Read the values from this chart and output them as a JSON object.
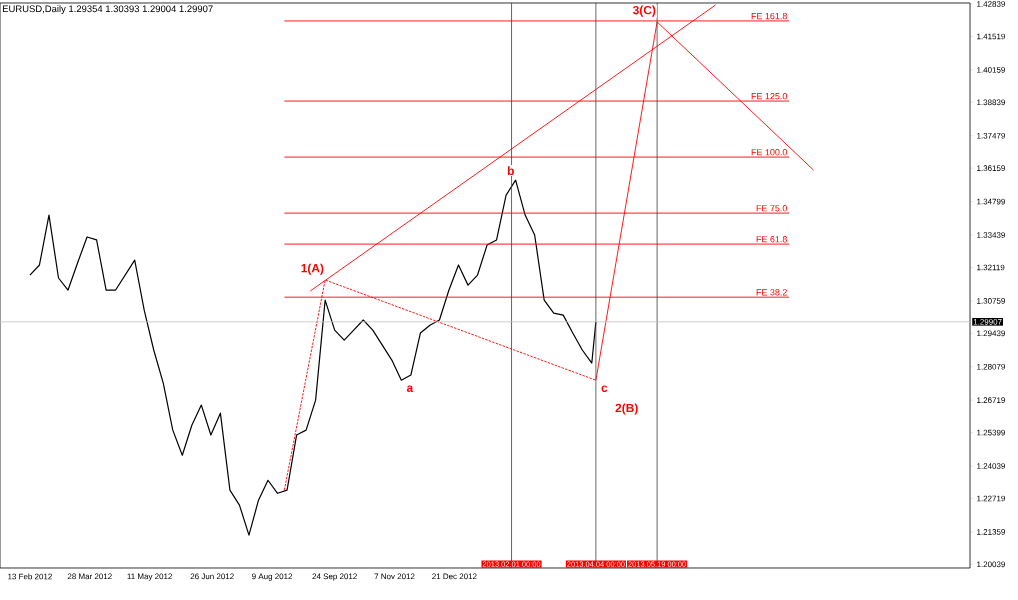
{
  "chart_data": {
    "type": "line",
    "title": "EURUSD,Daily  1.29354 1.30393 1.29004 1.29907",
    "x": [
      "2012-02-13",
      "2012-02-20",
      "2012-02-27",
      "2012-03-05",
      "2012-03-12",
      "2012-03-19",
      "2012-03-26",
      "2012-04-02",
      "2012-04-09",
      "2012-04-16",
      "2012-04-23",
      "2012-04-30",
      "2012-05-07",
      "2012-05-14",
      "2012-05-21",
      "2012-05-28",
      "2012-06-04",
      "2012-06-11",
      "2012-06-18",
      "2012-06-25",
      "2012-07-02",
      "2012-07-09",
      "2012-07-16",
      "2012-07-23",
      "2012-07-30",
      "2012-08-06",
      "2012-08-13",
      "2012-08-20",
      "2012-08-27",
      "2012-09-03",
      "2012-09-10",
      "2012-09-17",
      "2012-09-24",
      "2012-10-01",
      "2012-10-08",
      "2012-10-15",
      "2012-10-22",
      "2012-10-29",
      "2012-11-05",
      "2012-11-12",
      "2012-11-19",
      "2012-11-26",
      "2012-12-03",
      "2012-12-10",
      "2012-12-17",
      "2012-12-24",
      "2012-12-31",
      "2013-01-07",
      "2013-01-14",
      "2013-01-21",
      "2013-01-28",
      "2013-02-04",
      "2013-02-11",
      "2013-02-18",
      "2013-02-25",
      "2013-03-04",
      "2013-03-11",
      "2013-03-18",
      "2013-03-25",
      "2013-04-01",
      "2013-04-04"
    ],
    "series": [
      {
        "color": "#000000",
        "values": [
          1.3181,
          1.3222,
          1.3425,
          1.3169,
          1.312,
          1.323,
          1.3336,
          1.3324,
          1.312,
          1.312,
          1.3181,
          1.3242,
          1.3038,
          1.2876,
          1.2741,
          1.255,
          1.2448,
          1.257,
          1.2652,
          1.253,
          1.2619,
          1.2306,
          1.2245,
          1.2123,
          1.2265,
          1.2346,
          1.2293,
          1.2306,
          1.253,
          1.255,
          1.2672,
          1.3079,
          1.2957,
          1.2916,
          1.2957,
          1.2998,
          1.2957,
          1.2896,
          1.2835,
          1.2753,
          1.2774,
          1.2945,
          1.2977,
          1.2998,
          1.312,
          1.3222,
          1.314,
          1.3181,
          1.3303,
          1.3324,
          1.3506,
          1.3567,
          1.3425,
          1.3344,
          1.3079,
          1.3026,
          1.3018,
          1.2945,
          1.2876,
          1.2823,
          1.2991
        ]
      },
      {
        "color": "#ff0000",
        "line_style": "dashed",
        "x": [
          "2012-08-18",
          "2012-09-17",
          "2013-04-04"
        ],
        "values": [
          1.2306,
          1.3161,
          1.2753
        ]
      },
      {
        "color": "#ff0000",
        "x": [
          "2013-04-04",
          "2013-05-19",
          "2013-09-11"
        ],
        "values": [
          1.2753,
          1.4211,
          1.3608
        ]
      },
      {
        "color": "#ff0000",
        "x": [
          "2012-09-06",
          "2013-07-01"
        ],
        "values": [
          1.3116,
          1.428
        ]
      },
      {
        "name": "FE 161.8",
        "color": "#ff0000",
        "x": [
          "2012-08-18",
          "2013-08-24"
        ],
        "values": [
          1.4215,
          1.4215
        ]
      },
      {
        "name": "FE 125.0",
        "color": "#ff0000",
        "x": [
          "2012-08-18",
          "2013-08-24"
        ],
        "values": [
          1.3889,
          1.3889
        ]
      },
      {
        "name": "FE 100.0",
        "color": "#ff0000",
        "x": [
          "2012-08-18",
          "2013-08-24"
        ],
        "values": [
          1.3661,
          1.3661
        ]
      },
      {
        "name": "FE 75.0",
        "color": "#ff0000",
        "x": [
          "2012-08-18",
          "2013-08-24"
        ],
        "values": [
          1.3433,
          1.3433
        ]
      },
      {
        "name": "FE 61.8",
        "color": "#ff0000",
        "x": [
          "2012-08-18",
          "2013-08-24"
        ],
        "values": [
          1.3307,
          1.3307
        ]
      },
      {
        "name": "FE 38.2",
        "color": "#ff0000",
        "x": [
          "2012-08-18",
          "2013-08-24"
        ],
        "values": [
          1.3091,
          1.3091
        ]
      }
    ],
    "xlim": [
      "2012-01-22",
      "2014-01-04"
    ],
    "xticks": [
      {
        "value": "2012-02-13",
        "label": "13 Feb 2012"
      },
      {
        "value": "2012-03-28",
        "label": "28 Mar 2012"
      },
      {
        "value": "2012-05-11",
        "label": "11 May 2012"
      },
      {
        "value": "2012-06-26",
        "label": "26 Jun 2012"
      },
      {
        "value": "2012-08-09",
        "label": "9 Aug 2012"
      },
      {
        "value": "2012-09-24",
        "label": "24 Sep 2012"
      },
      {
        "value": "2012-11-07",
        "label": "7 Nov 2012"
      },
      {
        "value": "2012-12-21",
        "label": "21 Dec 2012"
      }
    ],
    "ylim": [
      1.1989,
      1.4288
    ],
    "yticks": [
      1.20039,
      1.21359,
      1.22719,
      1.24039,
      1.25399,
      1.26719,
      1.28079,
      1.29439,
      1.30759,
      1.32119,
      1.33439,
      1.34799,
      1.36159,
      1.37479,
      1.38839,
      1.40159,
      1.41519,
      1.42839
    ],
    "ref_lines": [
      {
        "axis": "x",
        "value": "2013-02-01",
        "label": "2013.02.01 00:00",
        "color": "#404040"
      },
      {
        "axis": "x",
        "value": "2013-04-04",
        "label": "2013.04.04 00:00",
        "color": "#404040"
      },
      {
        "axis": "x",
        "value": "2013-05-19",
        "label": "2013.05.19 00:00",
        "color": "#404040"
      },
      {
        "axis": "y",
        "value": 1.29907,
        "label": "1.29907",
        "color": "#c0c0c0"
      }
    ],
    "annotations": [
      {
        "text": "1(A)",
        "x": "2012-09-17",
        "y": 1.3161
      },
      {
        "text": "a",
        "x": "2012-11-12",
        "y": 1.2753
      },
      {
        "text": "b",
        "x": "2013-02-04",
        "y": 1.3567
      },
      {
        "text": "c",
        "x": "2013-04-04",
        "y": 1.2753
      },
      {
        "text": "2(B)",
        "x": "2013-04-04",
        "y": 1.2753
      },
      {
        "text": "3(C)",
        "x": "2013-05-19",
        "y": 1.4211
      }
    ],
    "grid": false,
    "marker": "none"
  }
}
